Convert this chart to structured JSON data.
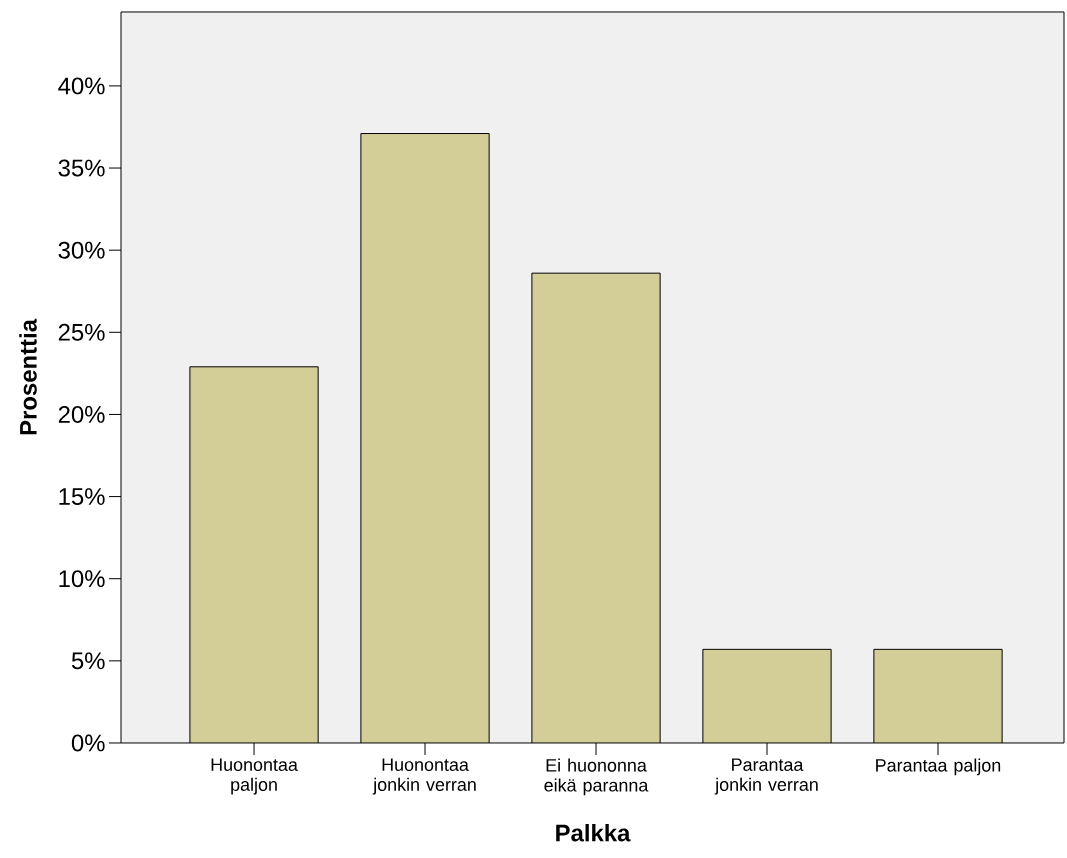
{
  "chart_data": {
    "type": "bar",
    "xlabel": "Palkka",
    "ylabel": "Prosenttia",
    "categories": [
      "Huonontaa paljon",
      "Huonontaa jonkin verran",
      "Ei huononna eikä paranna",
      "Parantaa jonkin verran",
      "Parantaa paljon"
    ],
    "values": [
      22.9,
      37.1,
      28.6,
      5.7,
      5.7
    ],
    "color": "#d3ce97",
    "ylim": [
      0,
      44.5
    ],
    "yticks": [
      {
        "value": 0,
        "label": "0%"
      },
      {
        "value": 5,
        "label": "5%"
      },
      {
        "value": 10,
        "label": "10%"
      },
      {
        "value": 15,
        "label": "15%"
      },
      {
        "value": 20,
        "label": "20%"
      },
      {
        "value": 25,
        "label": "25%"
      },
      {
        "value": 30,
        "label": "30%"
      },
      {
        "value": 35,
        "label": "35%"
      },
      {
        "value": 40,
        "label": "40%"
      }
    ],
    "grid": false
  }
}
